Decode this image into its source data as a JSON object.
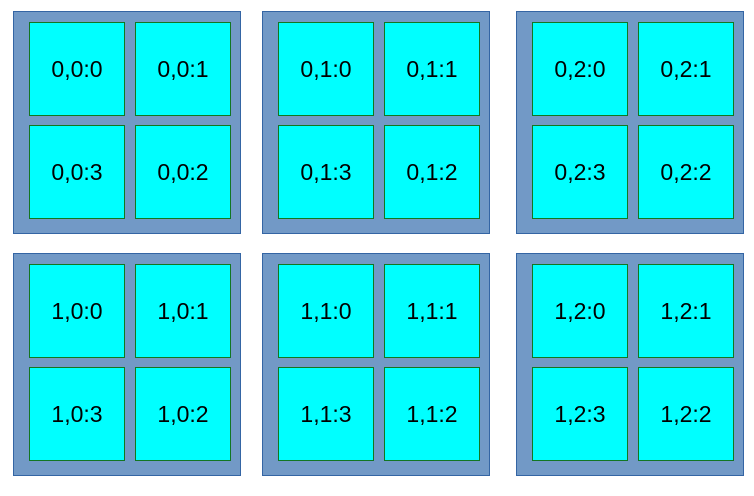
{
  "colors": {
    "group_fill": "#7299c6",
    "group_border": "#3465a4",
    "cell_fill": "#00ffff",
    "cell_border": "#127622",
    "text": "#000000"
  },
  "groups": [
    {
      "cells": [
        "0,0:0",
        "0,0:1",
        "0,0:3",
        "0,0:2"
      ]
    },
    {
      "cells": [
        "0,1:0",
        "0,1:1",
        "0,1:3",
        "0,1:2"
      ]
    },
    {
      "cells": [
        "0,2:0",
        "0,2:1",
        "0,2:3",
        "0,2:2"
      ]
    },
    {
      "cells": [
        "1,0:0",
        "1,0:1",
        "1,0:3",
        "1,0:2"
      ]
    },
    {
      "cells": [
        "1,1:0",
        "1,1:1",
        "1,1:3",
        "1,1:2"
      ]
    },
    {
      "cells": [
        "1,2:0",
        "1,2:1",
        "1,2:3",
        "1,2:2"
      ]
    }
  ]
}
